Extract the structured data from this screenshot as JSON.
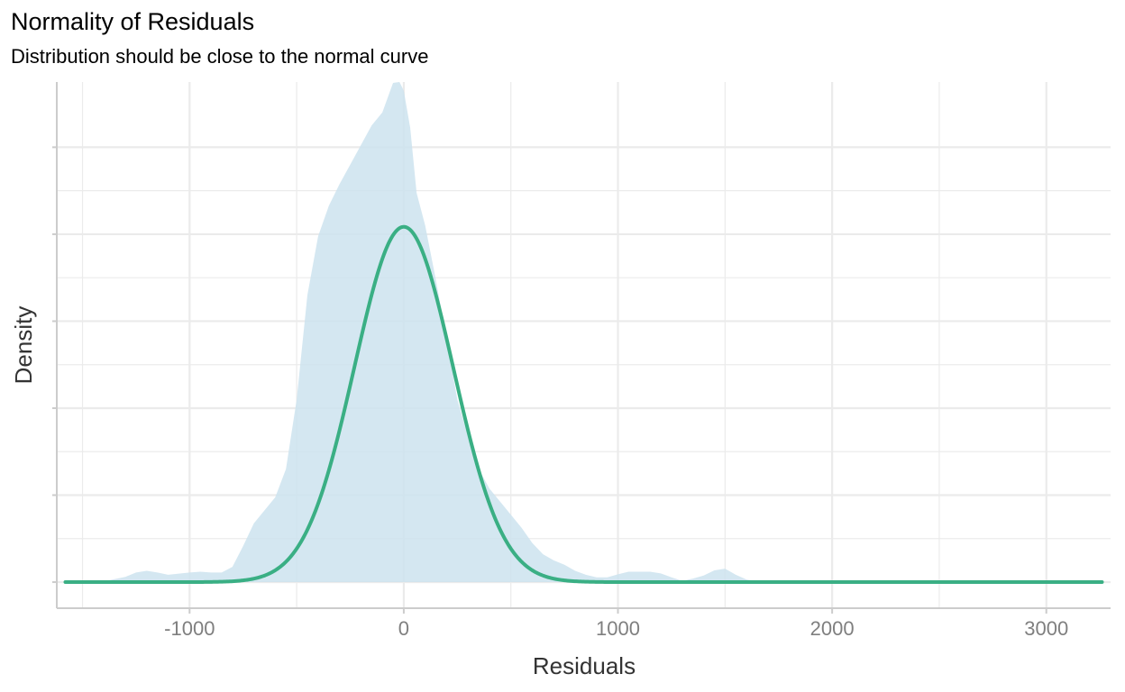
{
  "chart_data": {
    "type": "area",
    "title": "Normality of Residuals",
    "subtitle": "Distribution should be close to the normal curve",
    "xlabel": "Residuals",
    "ylabel": "Density",
    "xlim": [
      -1620,
      3300
    ],
    "ylim": [
      -6e-05,
      0.00115
    ],
    "x_ticks": [
      -1000,
      0,
      1000,
      2000,
      3000
    ],
    "x_tick_labels": [
      "-1000",
      "0",
      "1000",
      "2000",
      "3000"
    ],
    "y_ticks": [
      0,
      0.0002,
      0.0004,
      0.0006,
      0.0008,
      0.001
    ],
    "y_tick_labels_visible": false,
    "grid": true,
    "legend": "none",
    "colors": {
      "density_fill": "#cde3ef",
      "normal_curve": "#3aaf84",
      "grid": "#ebebeb",
      "axis": "#cccccc"
    },
    "series": [
      {
        "kind": "density",
        "x": [
          -1580,
          -1400,
          -1300,
          -1250,
          -1200,
          -1150,
          -1100,
          -1000,
          -950,
          -900,
          -850,
          -800,
          -750,
          -700,
          -650,
          -600,
          -550,
          -500,
          -450,
          -400,
          -350,
          -300,
          -250,
          -200,
          -150,
          -100,
          -50,
          -20,
          0,
          30,
          60,
          100,
          150,
          200,
          250,
          300,
          350,
          400,
          450,
          500,
          550,
          600,
          650,
          700,
          750,
          800,
          850,
          900,
          950,
          1000,
          1050,
          1100,
          1150,
          1200,
          1250,
          1300,
          1350,
          1400,
          1450,
          1500,
          1550,
          1600,
          1650,
          1700,
          1800,
          1900,
          2000,
          2050,
          2100,
          2150,
          2200,
          2400,
          2600,
          2800,
          3000,
          3200,
          3260
        ],
        "y": [
          0,
          2e-06,
          1.2e-05,
          2.2e-05,
          2.6e-05,
          2.2e-05,
          1.7e-05,
          2.2e-05,
          2.4e-05,
          2.2e-05,
          2.2e-05,
          3.5e-05,
          8.3e-05,
          0.000135,
          0.000165,
          0.000195,
          0.00026,
          0.00042,
          0.00066,
          0.000795,
          0.000865,
          0.000915,
          0.00096,
          0.001005,
          0.00105,
          0.00108,
          0.001148,
          0.00115,
          0.00113,
          0.001045,
          0.000895,
          0.00082,
          0.000695,
          0.00056,
          0.00042,
          0.000335,
          0.00026,
          0.000215,
          0.000185,
          0.000155,
          0.000125,
          9e-05,
          6.4e-05,
          5e-05,
          4e-05,
          2.6e-05,
          1.7e-05,
          1.1e-05,
          1.1e-05,
          1.8e-05,
          2.4e-05,
          2.4e-05,
          2.4e-05,
          2e-05,
          1.1e-05,
          3e-06,
          8e-06,
          1.5e-05,
          2.7e-05,
          3.1e-05,
          1.7e-05,
          6e-06,
          2e-06,
          5e-07,
          0,
          0,
          8e-07,
          4e-06,
          3.5e-06,
          8e-07,
          0,
          0,
          0,
          0,
          0,
          0,
          0
        ]
      },
      {
        "kind": "normal",
        "mean": 0,
        "sd": 230,
        "peak": 0.000817
      }
    ]
  }
}
